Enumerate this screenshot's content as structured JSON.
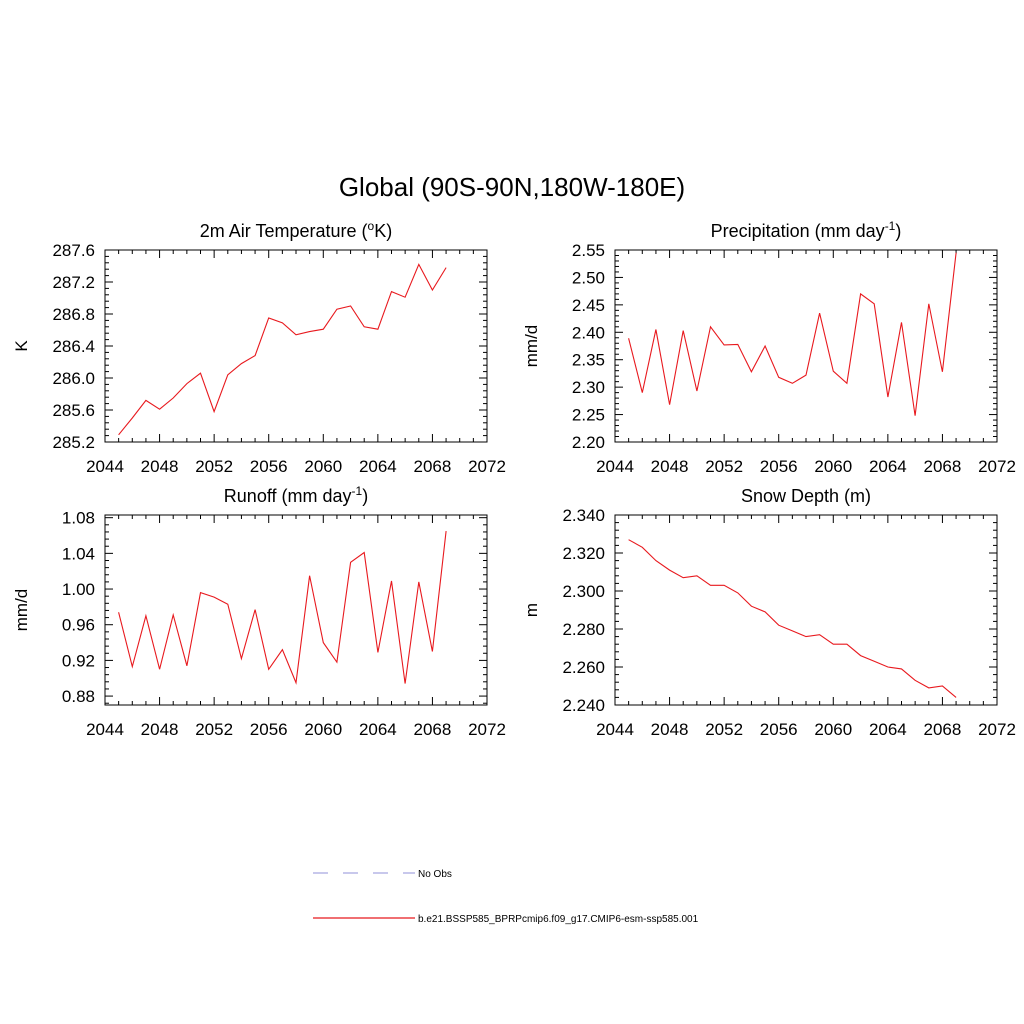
{
  "page_title": "Global (90S-90N,180W-180E)",
  "colors": {
    "model_line": "#e8191e",
    "obs_line": "#a8a8e0",
    "axes": "#000000"
  },
  "legend": {
    "items": [
      {
        "label": "No Obs",
        "style": "dashed",
        "color": "#a8a8e0"
      },
      {
        "label": "b.e21.BSSP585_BPRPcmip6.f09_g17.CMIP6-esm-ssp585.001",
        "style": "solid",
        "color": "#e8191e"
      }
    ]
  },
  "chart_data": [
    {
      "type": "line",
      "title": "2m Air Temperature (",
      "title_sup": "o",
      "title_after": "K)",
      "ylabel": "K",
      "xlabel": "",
      "xlim": [
        2044,
        2072
      ],
      "ylim": [
        285.2,
        287.6
      ],
      "xticks": [
        2044,
        2048,
        2052,
        2056,
        2060,
        2064,
        2068,
        2072
      ],
      "xtick_labels": [
        "2044",
        "2048",
        "2052",
        "2056",
        "2060",
        "2064",
        "2068",
        "2072"
      ],
      "yticks": [
        285.2,
        285.6,
        286.0,
        286.4,
        286.8,
        287.2,
        287.6
      ],
      "ytick_labels": [
        "285.2",
        "285.6",
        "286.0",
        "286.4",
        "286.8",
        "287.2",
        "287.6"
      ],
      "grid": false,
      "series": [
        {
          "x": [
            2045,
            2046,
            2047,
            2048,
            2049,
            2050,
            2051,
            2052,
            2053,
            2054,
            2055,
            2056,
            2057,
            2058,
            2059,
            2060,
            2061,
            2062,
            2063,
            2064,
            2065,
            2066,
            2067,
            2068,
            2069
          ],
          "y": [
            285.29,
            285.5,
            285.72,
            285.61,
            285.75,
            285.93,
            286.06,
            285.58,
            286.04,
            286.18,
            286.28,
            286.75,
            286.69,
            286.54,
            286.58,
            286.61,
            286.86,
            286.9,
            286.64,
            286.61,
            287.08,
            287.01,
            287.42,
            287.1,
            287.38
          ]
        }
      ]
    },
    {
      "type": "line",
      "title": "Precipitation (mm day",
      "title_sup": "-1",
      "title_after": ")",
      "ylabel": "mm/d",
      "xlabel": "",
      "xlim": [
        2044,
        2072
      ],
      "ylim": [
        2.2,
        2.55
      ],
      "xticks": [
        2044,
        2048,
        2052,
        2056,
        2060,
        2064,
        2068,
        2072
      ],
      "xtick_labels": [
        "2044",
        "2048",
        "2052",
        "2056",
        "2060",
        "2064",
        "2068",
        "2072"
      ],
      "yticks": [
        2.2,
        2.25,
        2.3,
        2.35,
        2.4,
        2.45,
        2.5,
        2.55
      ],
      "ytick_labels": [
        "2.20",
        "2.25",
        "2.30",
        "2.35",
        "2.40",
        "2.45",
        "2.50",
        "2.55"
      ],
      "grid": false,
      "series": [
        {
          "x": [
            2045,
            2046,
            2047,
            2048,
            2049,
            2050,
            2051,
            2052,
            2053,
            2054,
            2055,
            2056,
            2057,
            2058,
            2059,
            2060,
            2061,
            2062,
            2063,
            2064,
            2065,
            2066,
            2067,
            2068,
            2069
          ],
          "y": [
            2.389,
            2.29,
            2.405,
            2.268,
            2.403,
            2.293,
            2.41,
            2.377,
            2.378,
            2.328,
            2.375,
            2.318,
            2.307,
            2.322,
            2.435,
            2.329,
            2.307,
            2.47,
            2.452,
            2.282,
            2.418,
            2.248,
            2.452,
            2.328,
            2.545
          ]
        }
      ]
    },
    {
      "type": "line",
      "title": "Runoff (mm day",
      "title_sup": "-1",
      "title_after": ")",
      "ylabel": "mm/d",
      "xlabel": "",
      "xlim": [
        2044,
        2072
      ],
      "ylim": [
        0.87,
        1.083
      ],
      "xticks": [
        2044,
        2048,
        2052,
        2056,
        2060,
        2064,
        2068,
        2072
      ],
      "xtick_labels": [
        "2044",
        "2048",
        "2052",
        "2056",
        "2060",
        "2064",
        "2068",
        "2072"
      ],
      "yticks": [
        0.88,
        0.92,
        0.96,
        1.0,
        1.04,
        1.08
      ],
      "ytick_labels": [
        "0.88",
        "0.92",
        "0.96",
        "1.00",
        "1.04",
        "1.08"
      ],
      "grid": false,
      "series": [
        {
          "x": [
            2045,
            2046,
            2047,
            2048,
            2049,
            2050,
            2051,
            2052,
            2053,
            2054,
            2055,
            2056,
            2057,
            2058,
            2059,
            2060,
            2061,
            2062,
            2063,
            2064,
            2065,
            2066,
            2067,
            2068,
            2069
          ],
          "y": [
            0.974,
            0.913,
            0.97,
            0.91,
            0.971,
            0.914,
            0.996,
            0.991,
            0.983,
            0.922,
            0.977,
            0.91,
            0.932,
            0.895,
            1.015,
            0.94,
            0.918,
            1.03,
            1.041,
            0.929,
            1.009,
            0.894,
            1.008,
            0.93,
            1.065
          ]
        }
      ]
    },
    {
      "type": "line",
      "title": "Snow Depth (m)",
      "title_sup": "",
      "title_after": "",
      "ylabel": "m",
      "xlabel": "",
      "xlim": [
        2044,
        2072
      ],
      "ylim": [
        2.24,
        2.34
      ],
      "xticks": [
        2044,
        2048,
        2052,
        2056,
        2060,
        2064,
        2068,
        2072
      ],
      "xtick_labels": [
        "2044",
        "2048",
        "2052",
        "2056",
        "2060",
        "2064",
        "2068",
        "2072"
      ],
      "yticks": [
        2.24,
        2.26,
        2.28,
        2.3,
        2.32,
        2.34
      ],
      "ytick_labels": [
        "2.240",
        "2.260",
        "2.280",
        "2.300",
        "2.320",
        "2.340"
      ],
      "grid": false,
      "series": [
        {
          "x": [
            2045,
            2046,
            2047,
            2048,
            2049,
            2050,
            2051,
            2052,
            2053,
            2054,
            2055,
            2056,
            2057,
            2058,
            2059,
            2060,
            2061,
            2062,
            2063,
            2064,
            2065,
            2066,
            2067,
            2068,
            2069
          ],
          "y": [
            2.327,
            2.323,
            2.316,
            2.311,
            2.307,
            2.308,
            2.303,
            2.303,
            2.299,
            2.292,
            2.289,
            2.282,
            2.279,
            2.276,
            2.277,
            2.272,
            2.272,
            2.266,
            2.263,
            2.26,
            2.259,
            2.253,
            2.249,
            2.25,
            2.244
          ]
        }
      ]
    }
  ]
}
